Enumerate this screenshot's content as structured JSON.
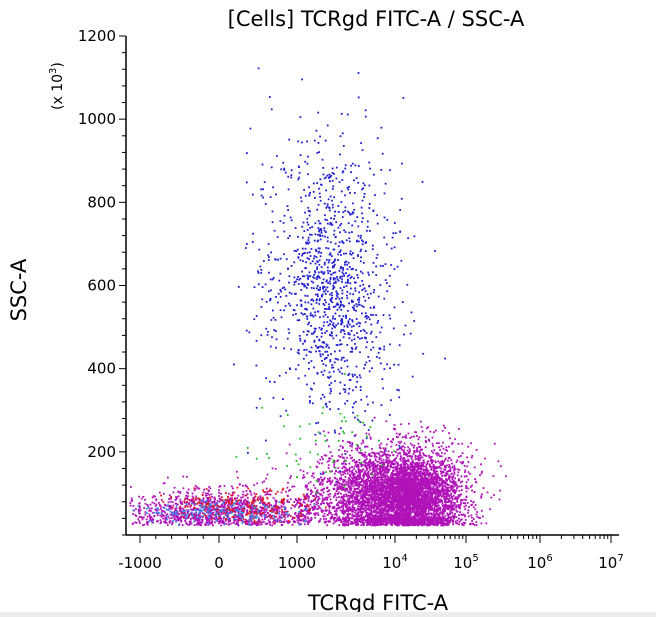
{
  "chart_data": {
    "type": "scatter",
    "title": "[Cells] TCRgd FITC-A / SSC-A",
    "xlabel": "TCRgd FITC-A",
    "ylabel": "SSC-A",
    "y_multiplier_label": "(x 10",
    "y_multiplier_exp": "3",
    "x_scale": "biexponential",
    "x_ticks": [
      {
        "value": -1000,
        "base": "-1000",
        "exp": ""
      },
      {
        "value": 0,
        "base": "0",
        "exp": ""
      },
      {
        "value": 1000,
        "base": "1000",
        "exp": ""
      },
      {
        "value": 10000,
        "base": "10",
        "exp": "4"
      },
      {
        "value": 100000,
        "base": "10",
        "exp": "5"
      },
      {
        "value": 1000000,
        "base": "10",
        "exp": "6"
      },
      {
        "value": 10000000,
        "base": "10",
        "exp": "7"
      }
    ],
    "y_ticks": [
      200,
      400,
      600,
      800,
      1000,
      1200
    ],
    "ylim": [
      0,
      1200
    ],
    "grid": false,
    "populations": [
      {
        "color": "#1f1fd0",
        "x_center": 2200,
        "x_spread_decades": 0.33,
        "y_center": 600,
        "y_spread": 170,
        "count": 1200
      },
      {
        "color": "#b012b8",
        "x_center": 12000,
        "x_spread_decades": 0.42,
        "y_center": 95,
        "y_spread": 55,
        "count": 6000
      },
      {
        "color": "#b012b8",
        "x_center": 0,
        "x_spread": 700,
        "y_center": 60,
        "y_spread": 25,
        "count": 1300
      },
      {
        "color": "#e01818",
        "x_center": 300,
        "x_spread": 450,
        "y_center": 70,
        "y_spread": 20,
        "count": 220
      },
      {
        "color": "#3a8ae8",
        "x_center": 0,
        "x_spread": 500,
        "y_center": 55,
        "y_spread": 15,
        "count": 180
      },
      {
        "color": "#22bb22",
        "x_center": 2200,
        "x_spread_decades": 0.35,
        "y_center": 230,
        "y_spread": 60,
        "count": 55
      }
    ]
  }
}
